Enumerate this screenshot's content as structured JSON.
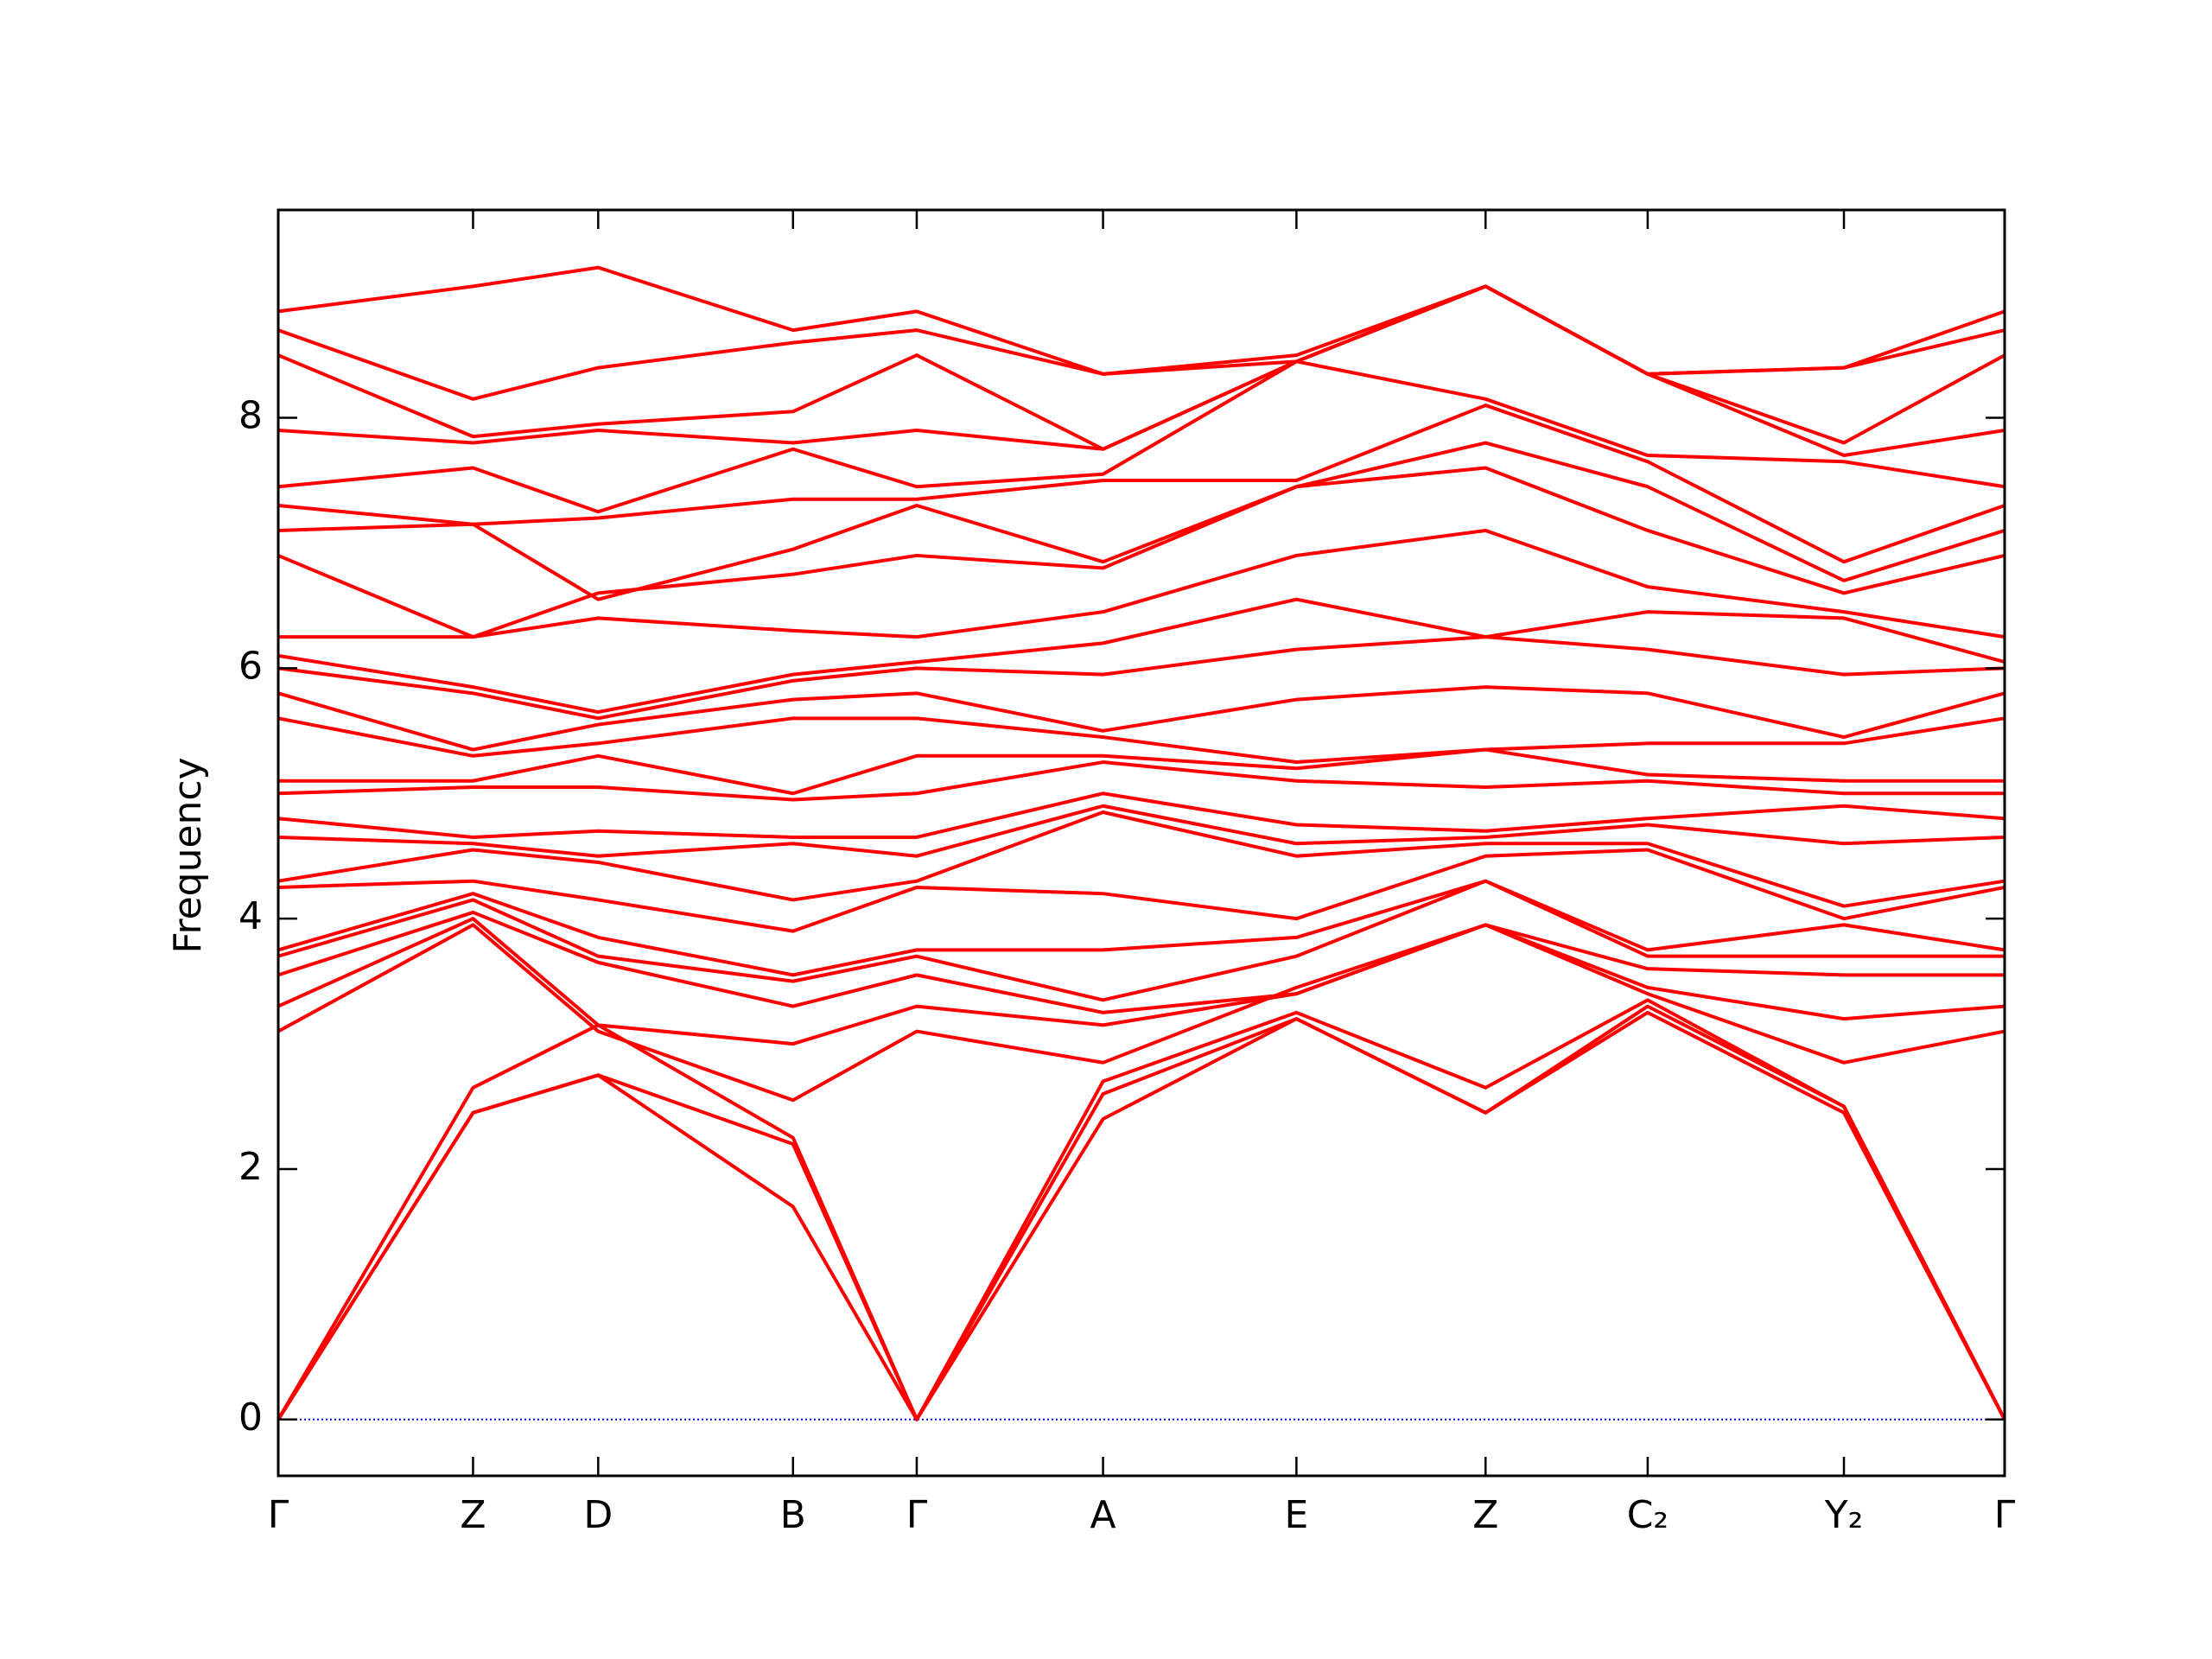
{
  "chart_data": {
    "type": "line",
    "ylabel": "Frequency",
    "color": "#ff0000",
    "x": [
      0,
      1.37,
      2.25,
      3.62,
      4.49,
      5.8,
      7.16,
      8.49,
      9.63,
      11.01,
      12.14
    ],
    "xlim": [
      0,
      12.14
    ],
    "xticks": [
      {
        "value": 0,
        "label": "Γ"
      },
      {
        "value": 1.37,
        "label": "Z"
      },
      {
        "value": 2.25,
        "label": "D"
      },
      {
        "value": 3.62,
        "label": "B"
      },
      {
        "value": 4.49,
        "label": "Γ"
      },
      {
        "value": 5.8,
        "label": "A"
      },
      {
        "value": 7.16,
        "label": "E"
      },
      {
        "value": 8.49,
        "label": "Z"
      },
      {
        "value": 9.63,
        "label": "C₂"
      },
      {
        "value": 11.01,
        "label": "Y₂"
      },
      {
        "value": 12.14,
        "label": "Γ"
      }
    ],
    "ylim": [
      -0.45,
      9.66
    ],
    "yticks": [
      0,
      2,
      4,
      6,
      8
    ],
    "hline": {
      "value": 0,
      "color": "#0000ff",
      "style": "dotted"
    },
    "series": [
      {
        "values": [
          0,
          2.45,
          2.75,
          1.7,
          0,
          2.4,
          3.2,
          2.45,
          3.25,
          2.45,
          0
        ]
      },
      {
        "values": [
          0,
          2.45,
          2.75,
          2.2,
          0,
          2.6,
          3.2,
          2.45,
          3.3,
          2.5,
          0
        ]
      },
      {
        "values": [
          0,
          2.65,
          3.15,
          2.25,
          0,
          2.7,
          3.25,
          2.65,
          3.35,
          2.5,
          0
        ]
      },
      {
        "values": [
          3.1,
          3.95,
          3.1,
          2.55,
          3.1,
          2.85,
          3.45,
          3.95,
          3.4,
          2.85,
          3.1
        ]
      },
      {
        "values": [
          3.3,
          4.0,
          3.15,
          3.0,
          3.3,
          3.15,
          3.4,
          3.95,
          3.45,
          3.2,
          3.3
        ]
      },
      {
        "values": [
          3.55,
          4.05,
          3.65,
          3.3,
          3.55,
          3.25,
          3.4,
          3.95,
          3.6,
          3.55,
          3.55
        ]
      },
      {
        "values": [
          3.7,
          4.15,
          3.7,
          3.5,
          3.7,
          3.35,
          3.7,
          4.3,
          3.7,
          3.7,
          3.7
        ]
      },
      {
        "values": [
          3.75,
          4.2,
          3.85,
          3.55,
          3.75,
          3.75,
          3.85,
          4.3,
          3.75,
          3.95,
          3.75
        ]
      },
      {
        "values": [
          4.25,
          4.3,
          4.15,
          3.9,
          4.25,
          4.2,
          4.0,
          4.5,
          4.55,
          4.0,
          4.25
        ]
      },
      {
        "values": [
          4.3,
          4.55,
          4.45,
          4.15,
          4.3,
          4.85,
          4.5,
          4.6,
          4.6,
          4.1,
          4.3
        ]
      },
      {
        "values": [
          4.65,
          4.6,
          4.5,
          4.6,
          4.5,
          4.9,
          4.6,
          4.65,
          4.75,
          4.6,
          4.65
        ]
      },
      {
        "values": [
          4.8,
          4.65,
          4.7,
          4.65,
          4.65,
          5.0,
          4.75,
          4.7,
          4.8,
          4.9,
          4.8
        ]
      },
      {
        "values": [
          5.0,
          5.05,
          5.05,
          4.95,
          5.0,
          5.25,
          5.1,
          5.05,
          5.1,
          5.0,
          5.0
        ]
      },
      {
        "values": [
          5.1,
          5.1,
          5.3,
          5.0,
          5.3,
          5.3,
          5.2,
          5.35,
          5.15,
          5.1,
          5.1
        ]
      },
      {
        "values": [
          5.6,
          5.3,
          5.4,
          5.6,
          5.6,
          5.45,
          5.25,
          5.35,
          5.4,
          5.4,
          5.6
        ]
      },
      {
        "values": [
          5.8,
          5.35,
          5.55,
          5.75,
          5.8,
          5.5,
          5.75,
          5.85,
          5.8,
          5.45,
          5.8
        ]
      },
      {
        "values": [
          6.0,
          5.8,
          5.6,
          5.9,
          6.0,
          5.95,
          6.15,
          6.25,
          6.15,
          5.95,
          6.0
        ]
      },
      {
        "values": [
          6.1,
          5.85,
          5.65,
          5.95,
          6.05,
          6.2,
          6.55,
          6.25,
          6.45,
          6.4,
          6.05
        ]
      },
      {
        "values": [
          6.25,
          6.25,
          6.4,
          6.3,
          6.25,
          6.45,
          6.9,
          7.1,
          6.65,
          6.45,
          6.25
        ]
      },
      {
        "values": [
          6.9,
          6.25,
          6.6,
          6.75,
          6.9,
          6.8,
          7.45,
          7.6,
          7.1,
          6.6,
          6.9
        ]
      },
      {
        "values": [
          7.1,
          7.15,
          6.55,
          6.95,
          7.3,
          6.85,
          7.45,
          7.8,
          7.45,
          6.7,
          7.1
        ]
      },
      {
        "values": [
          7.3,
          7.15,
          7.2,
          7.35,
          7.35,
          7.5,
          7.5,
          8.1,
          7.65,
          6.85,
          7.3
        ]
      },
      {
        "values": [
          7.45,
          7.6,
          7.25,
          7.75,
          7.45,
          7.55,
          8.45,
          8.15,
          7.7,
          7.65,
          7.45
        ]
      },
      {
        "values": [
          7.9,
          7.8,
          7.9,
          7.8,
          7.9,
          7.75,
          8.45,
          9.05,
          8.35,
          7.7,
          7.9
        ]
      },
      {
        "values": [
          8.5,
          7.85,
          7.95,
          8.05,
          8.5,
          7.75,
          8.45,
          9.05,
          8.35,
          7.8,
          8.5
        ]
      },
      {
        "values": [
          8.7,
          8.15,
          8.4,
          8.6,
          8.7,
          8.35,
          8.5,
          9.05,
          8.35,
          8.4,
          8.7
        ]
      },
      {
        "values": [
          8.85,
          9.05,
          9.2,
          8.7,
          8.85,
          8.35,
          8.45,
          9.05,
          8.35,
          8.4,
          8.85
        ]
      }
    ]
  }
}
